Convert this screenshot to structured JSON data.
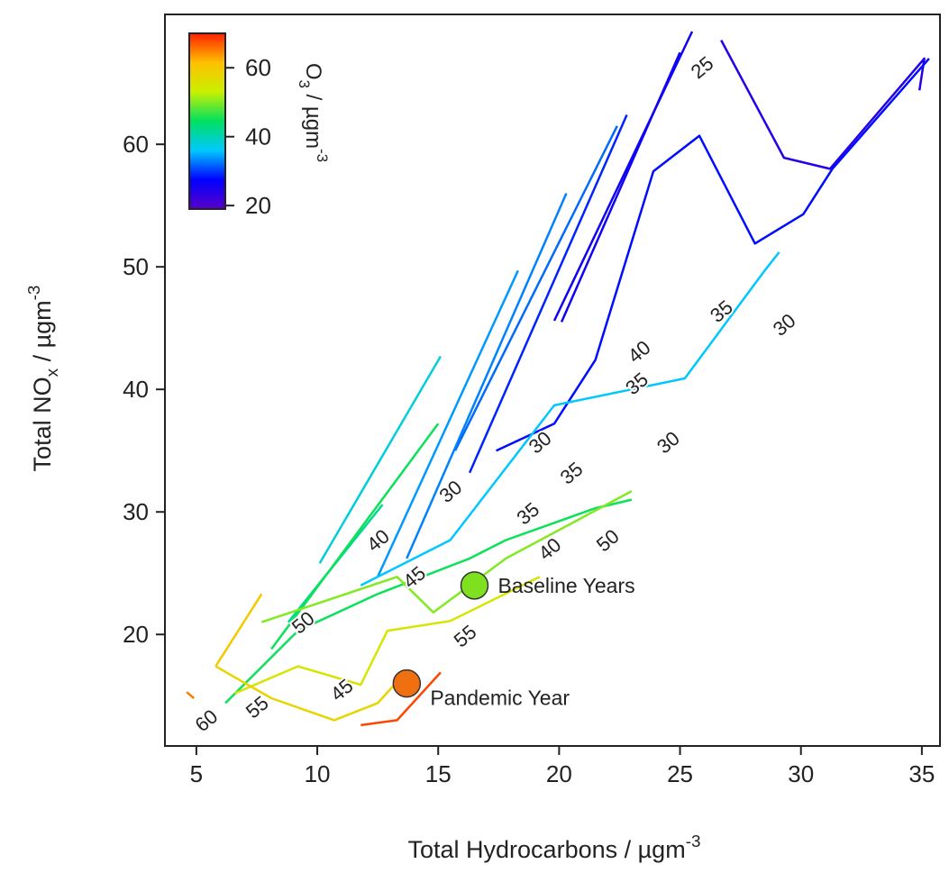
{
  "chart_data": {
    "type": "contour",
    "x_label": [
      {
        "text": "Total Hydrocarbons / µgm"
      },
      {
        "text": "-3",
        "shift": "super"
      }
    ],
    "y_label": [
      {
        "text": "Total NO"
      },
      {
        "text": "x",
        "shift": "sub"
      },
      {
        "text": " / µgm"
      },
      {
        "text": "-3",
        "shift": "super"
      }
    ],
    "xlim": [
      3.7,
      35.75
    ],
    "ylim": [
      10.9,
      70.6
    ],
    "xticks": [
      5,
      10,
      15,
      20,
      25,
      30,
      35
    ],
    "yticks": [
      20,
      30,
      40,
      50,
      60
    ],
    "colorbar": {
      "label": [
        {
          "text": "O"
        },
        {
          "text": "3",
          "shift": "sub"
        },
        {
          "text": " / µgm"
        },
        {
          "text": "-3",
          "shift": "super"
        }
      ],
      "lim": [
        19,
        70
      ],
      "ticks": [
        20,
        40,
        60
      ],
      "colors": [
        "#5a00c8",
        "#0000ff",
        "#00c8ff",
        "#00e060",
        "#c8f000",
        "#ffc000",
        "#ff2000"
      ]
    },
    "contours": [
      {
        "level": 24,
        "x": [
          26.7,
          29.3,
          31.2,
          35.1,
          34.9
        ],
        "y": [
          68.5,
          58.9,
          58.0,
          67.0,
          64.4
        ]
      },
      {
        "level": 26,
        "x": [
          19.8,
          25.5
        ],
        "y": [
          45.6,
          69.2
        ]
      },
      {
        "level": 26,
        "x": [
          20.1,
          25.0
        ],
        "y": [
          45.5,
          67.5
        ]
      },
      {
        "level": 29,
        "x": [
          16.3,
          22.8
        ],
        "y": [
          33.2,
          62.4
        ]
      },
      {
        "level": 28,
        "x": [
          17.4,
          19.8,
          21.5,
          23.9,
          25.8,
          28.1,
          30.1,
          31.3,
          35.3
        ],
        "y": [
          35.0,
          37.2,
          42.4,
          57.8,
          60.7,
          51.9,
          54.3,
          58.0,
          67.0
        ]
      },
      {
        "level": 32,
        "x": [
          15.7,
          22.4
        ],
        "y": [
          35.0,
          61.5
        ]
      },
      {
        "level": 33,
        "x": [
          13.7,
          20.3
        ],
        "y": [
          26.2,
          56.0
        ]
      },
      {
        "level": 34,
        "x": [
          12.5,
          18.3
        ],
        "y": [
          24.7,
          49.7
        ]
      },
      {
        "level": 36,
        "x": [
          11.8,
          15.5,
          19.8,
          25.2,
          28.5,
          29.1
        ],
        "y": [
          24.0,
          27.7,
          38.7,
          40.9,
          49.7,
          51.2
        ]
      },
      {
        "level": 38,
        "x": [
          10.1,
          15.1
        ],
        "y": [
          25.8,
          42.7
        ]
      },
      {
        "level": 42,
        "x": [
          8.8,
          12.7
        ],
        "y": [
          21.0,
          30.6
        ]
      },
      {
        "level": 45,
        "x": [
          8.1,
          15.0
        ],
        "y": [
          18.8,
          37.2
        ]
      },
      {
        "level": 45,
        "x": [
          6.2,
          9.2,
          12.5,
          16.3,
          17.8,
          21.5,
          23.0
        ],
        "y": [
          14.4,
          20.3,
          23.3,
          26.2,
          27.7,
          30.3,
          31.0
        ]
      },
      {
        "level": 50,
        "x": [
          7.7,
          13.3,
          14.8,
          16.3,
          17.8,
          23.0
        ],
        "y": [
          21.0,
          24.7,
          21.8,
          24.0,
          26.2,
          31.7
        ]
      },
      {
        "level": 55,
        "x": [
          6.6,
          9.2,
          11.8,
          12.9,
          15.5,
          19.2
        ],
        "y": [
          15.2,
          17.4,
          15.9,
          20.3,
          21.1,
          24.7
        ]
      },
      {
        "level": 58,
        "x": [
          5.8,
          8.1,
          10.7,
          12.5,
          13.7
        ],
        "y": [
          17.4,
          14.8,
          13.0,
          14.4,
          17.0
        ]
      },
      {
        "level": 60,
        "x": [
          5.8,
          7.7
        ],
        "y": [
          17.4,
          23.3
        ]
      },
      {
        "level": 65,
        "x": [
          4.6,
          4.9
        ],
        "y": [
          15.3,
          14.8
        ]
      },
      {
        "level": 68,
        "x": [
          11.8,
          13.3,
          15.1
        ],
        "y": [
          12.6,
          13.0,
          16.9
        ]
      }
    ],
    "contour_labels": [
      {
        "level": 25,
        "x": 25.9,
        "y": 66.3
      },
      {
        "level": 30,
        "x": 15.5,
        "y": 31.7
      },
      {
        "level": 30,
        "x": 19.2,
        "y": 35.7
      },
      {
        "level": 30,
        "x": 29.3,
        "y": 45.3
      },
      {
        "level": 30,
        "x": 24.5,
        "y": 35.7
      },
      {
        "level": 35,
        "x": 26.7,
        "y": 46.4
      },
      {
        "level": 35,
        "x": 23.2,
        "y": 40.5
      },
      {
        "level": 35,
        "x": 20.5,
        "y": 33.2
      },
      {
        "level": 35,
        "x": 18.7,
        "y": 29.9
      },
      {
        "level": 40,
        "x": 23.3,
        "y": 43.1
      },
      {
        "level": 40,
        "x": 12.5,
        "y": 27.7
      },
      {
        "level": 40,
        "x": 19.6,
        "y": 27.0
      },
      {
        "level": 45,
        "x": 14.0,
        "y": 24.7
      },
      {
        "level": 45,
        "x": 11.0,
        "y": 15.5
      },
      {
        "level": 50,
        "x": 9.4,
        "y": 21.0
      },
      {
        "level": 50,
        "x": 22.0,
        "y": 27.7
      },
      {
        "level": 55,
        "x": 16.1,
        "y": 19.9
      },
      {
        "level": 55,
        "x": 7.5,
        "y": 14.1
      },
      {
        "level": 60,
        "x": 5.4,
        "y": 13.0
      }
    ],
    "points": [
      {
        "name": "Baseline Years",
        "x": 16.5,
        "y": 24,
        "color": "#7fe020"
      },
      {
        "name": "Pandemic Year",
        "x": 13.7,
        "y": 16,
        "color": "#f07010"
      }
    ]
  }
}
